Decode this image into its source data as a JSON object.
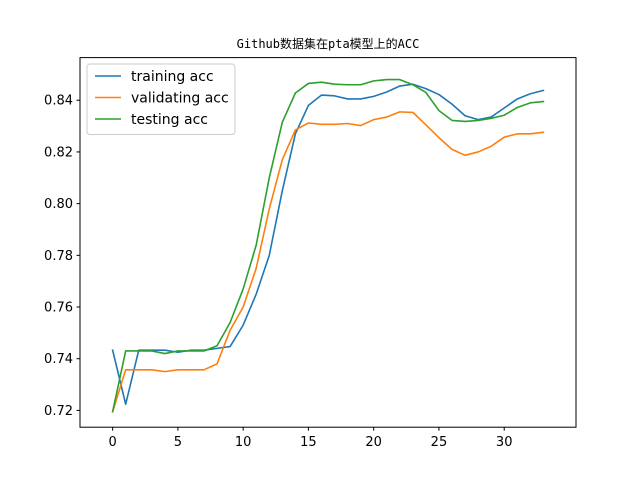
{
  "chart_data": {
    "type": "line",
    "title": "Github数据集在pta模型上的ACC",
    "xlabel": "",
    "ylabel": "",
    "xlim": [
      -2.5,
      35.5
    ],
    "ylim": [
      0.7135,
      0.8565
    ],
    "xticks": [
      0,
      5,
      10,
      15,
      20,
      25,
      30
    ],
    "yticks": [
      0.72,
      0.74,
      0.76,
      0.78,
      0.8,
      0.82,
      0.84
    ],
    "ytick_labels": [
      "0.72",
      "0.74",
      "0.76",
      "0.78",
      "0.80",
      "0.82",
      "0.84"
    ],
    "grid": false,
    "legend_position": "upper-left",
    "x": [
      0,
      1,
      2,
      3,
      4,
      5,
      6,
      7,
      8,
      9,
      10,
      11,
      12,
      13,
      14,
      15,
      16,
      17,
      18,
      19,
      20,
      21,
      22,
      23,
      24,
      25,
      26,
      27,
      28,
      29,
      30,
      31,
      32,
      33
    ],
    "series": [
      {
        "name": "training acc",
        "color": "#1f77b4",
        "values": [
          0.7433,
          0.7224,
          0.7433,
          0.7433,
          0.7433,
          0.7425,
          0.7433,
          0.7433,
          0.744,
          0.7447,
          0.753,
          0.765,
          0.78,
          0.805,
          0.827,
          0.838,
          0.842,
          0.8417,
          0.8405,
          0.8405,
          0.8415,
          0.8432,
          0.8455,
          0.8462,
          0.8445,
          0.8422,
          0.8385,
          0.834,
          0.8325,
          0.8335,
          0.837,
          0.8405,
          0.8425,
          0.8438
        ]
      },
      {
        "name": "validating acc",
        "color": "#ff7f0e",
        "values": [
          0.7195,
          0.7357,
          0.7357,
          0.7357,
          0.735,
          0.7357,
          0.7357,
          0.7357,
          0.738,
          0.751,
          0.76,
          0.775,
          0.798,
          0.817,
          0.8285,
          0.8312,
          0.8307,
          0.8307,
          0.831,
          0.8302,
          0.8325,
          0.8335,
          0.8355,
          0.8353,
          0.8305,
          0.8255,
          0.821,
          0.8187,
          0.82,
          0.8222,
          0.8257,
          0.827,
          0.827,
          0.8276
        ]
      },
      {
        "name": "testing acc",
        "color": "#2ca02c",
        "values": [
          0.7195,
          0.743,
          0.743,
          0.743,
          0.742,
          0.743,
          0.743,
          0.743,
          0.745,
          0.754,
          0.767,
          0.784,
          0.81,
          0.8315,
          0.8428,
          0.8465,
          0.847,
          0.8462,
          0.846,
          0.846,
          0.8475,
          0.848,
          0.848,
          0.846,
          0.843,
          0.836,
          0.8322,
          0.8318,
          0.8322,
          0.833,
          0.8342,
          0.8372,
          0.839,
          0.8395
        ]
      }
    ]
  }
}
